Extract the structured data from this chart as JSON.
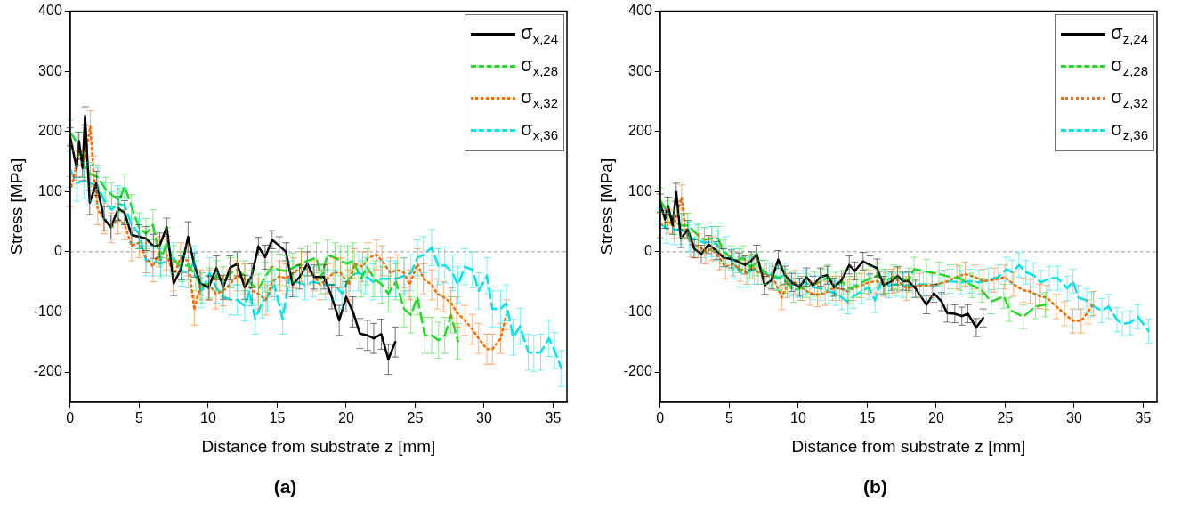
{
  "chart_data": [
    {
      "type": "line",
      "title": "(a)",
      "xlabel": "Distance from substrate z [mm]",
      "ylabel": "Stress [MPa]",
      "xlim": [
        0,
        36
      ],
      "xticks": [
        0,
        5,
        10,
        15,
        20,
        25,
        30,
        35
      ],
      "ylim": [
        -250,
        400
      ],
      "yticks": [
        -200,
        -100,
        0,
        100,
        200,
        300,
        400
      ],
      "grid": false,
      "legend": "top right",
      "marker": "none",
      "ref_lines": [
        {
          "axis": "y",
          "value": 0,
          "color": "#999999",
          "line_style": "dashed"
        }
      ],
      "series": [
        {
          "name": "σ$_{x,24}$",
          "color": "#000000",
          "line_style": "solid",
          "x": [
            0,
            0.47,
            0.64,
            0.9,
            1.08,
            1.42,
            1.9,
            2.46,
            2.95,
            3.5,
            3.94,
            4.45,
            5.0,
            5.5,
            6.05,
            6.5,
            7.0,
            7.5,
            8.06,
            8.55,
            9.0,
            9.43,
            10.03,
            10.6,
            11.1,
            11.58,
            12.1,
            12.65,
            13.16,
            13.64,
            14.13,
            14.64,
            15.15,
            15.64,
            16.12,
            16.63,
            17.19,
            17.67,
            18.4,
            18.96,
            19.5,
            20.0,
            20.5,
            21.0,
            21.55,
            22.0,
            22.55,
            23.06,
            23.56
          ],
          "values": [
            191,
            139,
            184,
            139,
            226,
            82,
            114,
            55,
            41,
            72,
            65,
            28,
            25,
            22,
            9,
            11,
            41,
            -53,
            -27,
            25,
            -22,
            -52,
            -60,
            -27,
            -59,
            -27,
            -20,
            -59,
            -40,
            9,
            -9,
            20,
            10,
            0,
            -55,
            -42,
            -20,
            -42,
            -42,
            -75,
            -114,
            -75,
            -100,
            -136,
            -139,
            -144,
            -137,
            -179,
            -150
          ],
          "errors": [
            15,
            15,
            15,
            15,
            15,
            20,
            20,
            20,
            20,
            20,
            20,
            20,
            20,
            20,
            20,
            20,
            15,
            20,
            20,
            25,
            20,
            20,
            20,
            20,
            20,
            20,
            20,
            20,
            20,
            15,
            20,
            15,
            15,
            15,
            20,
            20,
            20,
            20,
            20,
            20,
            25,
            25,
            25,
            25,
            25,
            25,
            25,
            25,
            25
          ]
        },
        {
          "name": "σ$_{x,28}$",
          "color": "#22dd22",
          "line_style": "dashed",
          "x": [
            0,
            0.58,
            1.0,
            1.46,
            2.0,
            2.57,
            3.0,
            3.57,
            3.94,
            4.45,
            5.0,
            5.5,
            6.0,
            6.55,
            7.0,
            7.5,
            8.1,
            8.55,
            9.1,
            9.55,
            10.1,
            10.6,
            11.1,
            11.65,
            12.1,
            12.65,
            13.2,
            13.64,
            14.13,
            14.64,
            15.15,
            15.64,
            16.12,
            16.75,
            17.2,
            17.85,
            18.2,
            18.63,
            19.2,
            19.6,
            20.1,
            20.5,
            21.1,
            21.5,
            22.06,
            22.6,
            23.06,
            23.6,
            24.2,
            24.7,
            25.16,
            25.7,
            26.2,
            26.7,
            27.15,
            27.6,
            28.1
          ],
          "values": [
            199,
            179,
            144,
            129,
            124,
            104,
            95,
            85,
            109,
            75,
            40,
            30,
            45,
            -15,
            15,
            -15,
            -25,
            -22,
            -40,
            -60,
            -52,
            -40,
            -50,
            -35,
            -30,
            -40,
            -55,
            -62,
            -42,
            -25,
            -30,
            -32,
            -27,
            -20,
            -15,
            -10,
            -45,
            -5,
            -10,
            -15,
            -20,
            -15,
            -45,
            -25,
            -45,
            -55,
            -70,
            -50,
            -95,
            -105,
            -75,
            -139,
            -139,
            -147,
            -139,
            -105,
            -149
          ],
          "errors": [
            20,
            20,
            20,
            20,
            20,
            20,
            20,
            20,
            20,
            20,
            25,
            25,
            25,
            25,
            25,
            25,
            25,
            25,
            25,
            25,
            25,
            25,
            25,
            25,
            25,
            25,
            25,
            25,
            25,
            25,
            25,
            25,
            25,
            25,
            25,
            25,
            25,
            25,
            25,
            25,
            30,
            30,
            30,
            30,
            30,
            30,
            30,
            30,
            30,
            30,
            30,
            30,
            30,
            30,
            30,
            30,
            30
          ]
        },
        {
          "name": "σ$_{x,32}$",
          "color": "#ff6a00",
          "line_style": "dotted",
          "x": [
            0,
            0.47,
            1.0,
            1.46,
            1.68,
            2.0,
            2.46,
            3.0,
            3.46,
            3.96,
            4.45,
            5.0,
            5.5,
            6.0,
            6.45,
            7.0,
            7.5,
            8.0,
            8.55,
            9.0,
            9.43,
            10.1,
            10.54,
            11.1,
            11.54,
            12.1,
            12.65,
            13.2,
            13.64,
            14.2,
            14.64,
            15.2,
            15.64,
            16.2,
            16.75,
            17.2,
            17.7,
            18.1,
            18.63,
            19.1,
            19.6,
            20.2,
            20.6,
            21.2,
            21.6,
            22.2,
            22.6,
            23.2,
            23.7,
            24.2,
            24.6,
            25.16,
            25.6,
            26.2,
            26.6,
            27.05,
            27.6,
            28.0,
            28.6,
            29.15,
            29.6,
            30.2,
            30.6,
            31.2,
            31.6
          ],
          "values": [
            100,
            144,
            144,
            209,
            134,
            70,
            55,
            40,
            55,
            45,
            10,
            15,
            -10,
            -25,
            0,
            -5,
            -40,
            -10,
            -15,
            -97,
            -55,
            -55,
            -70,
            -65,
            -55,
            -40,
            -45,
            -65,
            -70,
            -80,
            -50,
            -40,
            -45,
            -35,
            -25,
            -30,
            -40,
            -55,
            -45,
            -35,
            -35,
            -55,
            -20,
            -25,
            -10,
            -5,
            -15,
            -35,
            -30,
            -35,
            -55,
            -20,
            -45,
            -55,
            -70,
            -75,
            -85,
            -100,
            -114,
            -129,
            -144,
            -162,
            -162,
            -144,
            -105
          ],
          "errors": [
            25,
            25,
            25,
            25,
            25,
            25,
            25,
            25,
            25,
            25,
            25,
            25,
            25,
            25,
            25,
            25,
            25,
            25,
            25,
            25,
            25,
            25,
            25,
            25,
            25,
            25,
            25,
            25,
            25,
            25,
            25,
            25,
            25,
            25,
            25,
            25,
            25,
            25,
            25,
            25,
            25,
            25,
            25,
            25,
            25,
            25,
            25,
            25,
            25,
            25,
            25,
            25,
            25,
            25,
            25,
            25,
            25,
            25,
            25,
            25,
            25,
            25,
            25,
            25,
            25
          ]
        },
        {
          "name": "σ$_{x,36}$",
          "color": "#00e5ee",
          "line_style": "dashed",
          "x": [
            0,
            0.47,
            1.0,
            1.46,
            2.0,
            2.46,
            3.0,
            3.46,
            3.96,
            4.45,
            5.0,
            5.5,
            6.0,
            6.55,
            7.0,
            7.5,
            8.1,
            8.55,
            9.0,
            9.5,
            10.1,
            10.6,
            11.1,
            11.65,
            12.1,
            12.65,
            13.0,
            13.4,
            13.9,
            14.3,
            14.8,
            15.4,
            15.9,
            16.4,
            17.0,
            17.6,
            18.5,
            19.2,
            19.7,
            20.3,
            20.9,
            21.4,
            21.95,
            22.5,
            23.1,
            23.6,
            24.2,
            24.7,
            25.16,
            25.6,
            26.2,
            26.7,
            27.15,
            27.7,
            28.1,
            28.6,
            29.15,
            29.6,
            30.2,
            30.6,
            31.2,
            31.6,
            32.1,
            32.6,
            33.2,
            33.6,
            34.1,
            34.7,
            35.1,
            35.6
          ],
          "values": [
            137,
            114,
            119,
            114,
            109,
            85,
            70,
            80,
            77,
            45,
            30,
            -15,
            -15,
            -20,
            -15,
            -10,
            -32,
            -35,
            -15,
            -68,
            -35,
            -60,
            -75,
            -80,
            -80,
            -90,
            -65,
            -112,
            -85,
            -75,
            -55,
            -112,
            -40,
            -50,
            -55,
            -50,
            -55,
            -55,
            -70,
            -40,
            -35,
            -40,
            -50,
            -45,
            -45,
            -45,
            -40,
            -35,
            -10,
            -5,
            7,
            -25,
            -22,
            -35,
            -55,
            -25,
            -30,
            -65,
            -40,
            -95,
            -95,
            -85,
            -142,
            -124,
            -167,
            -169,
            -167,
            -144,
            -164,
            -194
          ],
          "errors": [
            30,
            30,
            30,
            30,
            30,
            30,
            30,
            30,
            30,
            30,
            25,
            25,
            25,
            25,
            25,
            25,
            25,
            25,
            25,
            25,
            25,
            25,
            25,
            25,
            25,
            25,
            25,
            25,
            25,
            25,
            25,
            25,
            25,
            25,
            25,
            25,
            25,
            25,
            25,
            25,
            30,
            30,
            30,
            30,
            30,
            30,
            30,
            30,
            30,
            30,
            30,
            30,
            30,
            30,
            30,
            30,
            30,
            30,
            30,
            30,
            30,
            30,
            30,
            30,
            30,
            30,
            30,
            30,
            30,
            30
          ]
        }
      ]
    },
    {
      "type": "line",
      "title": "(b)",
      "xlabel": "Distance from substrate z [mm]",
      "ylabel": "Stress [MPa]",
      "xlim": [
        0,
        36
      ],
      "xticks": [
        0,
        5,
        10,
        15,
        20,
        25,
        30,
        35
      ],
      "ylim": [
        -250,
        400
      ],
      "yticks": [
        -200,
        -100,
        0,
        100,
        200,
        300,
        400
      ],
      "grid": false,
      "legend": "top right",
      "marker": "none",
      "ref_lines": [
        {
          "axis": "y",
          "value": 0,
          "color": "#999999",
          "line_style": "dashed"
        }
      ],
      "series": [
        {
          "name": "σ$_{z,24}$",
          "color": "#000000",
          "line_style": "solid",
          "x": [
            0,
            0.35,
            0.57,
            0.9,
            1.16,
            1.5,
            2.0,
            2.47,
            2.98,
            3.5,
            4.07,
            4.6,
            5.16,
            5.7,
            6.15,
            6.6,
            7.0,
            7.57,
            8.07,
            8.55,
            9.04,
            9.54,
            10.1,
            10.6,
            11.07,
            11.6,
            12.1,
            12.6,
            13.15,
            13.7,
            14.1,
            14.7,
            15.2,
            15.7,
            16.2,
            16.76,
            17.2,
            17.6,
            18.0,
            18.5,
            19.3,
            19.83,
            20.4,
            20.8,
            21.35,
            21.86,
            22.3,
            22.9,
            23.4
          ],
          "values": [
            81,
            54,
            76,
            44,
            99,
            22,
            37,
            5,
            -4,
            12,
            2,
            -10,
            -12,
            -17,
            -22,
            -15,
            -4,
            -56,
            -47,
            -13,
            -39,
            -51,
            -59,
            -42,
            -56,
            -42,
            -39,
            -59,
            -47,
            -22,
            -32,
            -16,
            -22,
            -27,
            -56,
            -49,
            -40,
            -49,
            -49,
            -61,
            -88,
            -69,
            -83,
            -102,
            -103,
            -107,
            -103,
            -126,
            -110
          ],
          "errors": [
            15,
            15,
            15,
            15,
            15,
            15,
            15,
            15,
            15,
            15,
            15,
            15,
            15,
            15,
            15,
            15,
            15,
            15,
            15,
            15,
            15,
            15,
            15,
            15,
            15,
            15,
            15,
            15,
            15,
            15,
            15,
            15,
            15,
            15,
            15,
            15,
            15,
            15,
            15,
            15,
            15,
            15,
            15,
            15,
            15,
            15,
            15,
            15,
            15
          ]
        },
        {
          "name": "σ$_{z,28}$",
          "color": "#22dd22",
          "line_style": "dashed",
          "x": [
            0,
            0.57,
            1.0,
            1.55,
            2.0,
            2.76,
            3.2,
            3.74,
            4.2,
            4.6,
            5.16,
            5.7,
            6.0,
            6.5,
            7.0,
            7.57,
            8.1,
            8.67,
            9.1,
            9.65,
            10.15,
            10.6,
            11.2,
            11.7,
            12.17,
            12.7,
            13.26,
            13.7,
            14.25,
            14.8,
            15.23,
            15.8,
            16.3,
            16.9,
            17.3,
            18.0,
            18.4,
            19.3,
            20.2,
            21.0,
            21.7,
            22.6,
            23.3,
            23.98,
            24.9,
            25.3,
            26.3,
            27.2,
            27.9
          ],
          "values": [
            86,
            64,
            49,
            44,
            44,
            27,
            20,
            22,
            22,
            0,
            -10,
            -15,
            -10,
            -25,
            -20,
            -34,
            -39,
            -44,
            -49,
            -64,
            -61,
            -56,
            -54,
            -49,
            -42,
            -54,
            -51,
            -61,
            -56,
            -49,
            -44,
            -39,
            -49,
            -42,
            -44,
            -47,
            -29,
            -33,
            -37,
            -42,
            -44,
            -56,
            -64,
            -83,
            -74,
            -96,
            -108,
            -91,
            -88
          ],
          "errors": [
            20,
            20,
            20,
            20,
            20,
            20,
            20,
            20,
            20,
            20,
            20,
            20,
            20,
            20,
            20,
            20,
            20,
            20,
            20,
            20,
            20,
            20,
            20,
            20,
            20,
            20,
            20,
            20,
            20,
            20,
            20,
            20,
            20,
            20,
            20,
            20,
            20,
            20,
            20,
            20,
            20,
            20,
            20,
            20,
            20,
            20,
            20,
            20,
            20
          ]
        },
        {
          "name": "σ$_{z,32}$",
          "color": "#ff6a00",
          "line_style": "dotted",
          "x": [
            0,
            0.57,
            1.0,
            1.55,
            1.77,
            2.2,
            2.76,
            3.3,
            3.74,
            4.3,
            4.73,
            5.27,
            5.8,
            6.26,
            6.7,
            7.1,
            7.7,
            8.2,
            8.8,
            9.2,
            9.76,
            10.3,
            10.85,
            11.4,
            11.95,
            12.5,
            13.0,
            13.6,
            14.0,
            14.6,
            15.1,
            15.7,
            16.2,
            16.8,
            17.2,
            17.85,
            18.8,
            19.7,
            20.6,
            21.5,
            22.1,
            22.8,
            23.4,
            24.2,
            24.97,
            25.6,
            26.3,
            26.8,
            27.5,
            28.0,
            28.7,
            29.3,
            29.9,
            30.5,
            31.0,
            31.4
          ],
          "values": [
            44,
            51,
            42,
            91,
            44,
            12,
            10,
            0,
            5,
            -10,
            -25,
            -20,
            -29,
            -34,
            -25,
            -34,
            -39,
            -44,
            -76,
            -56,
            -51,
            -61,
            -69,
            -71,
            -69,
            -61,
            -61,
            -66,
            -61,
            -56,
            -51,
            -49,
            -54,
            -49,
            -47,
            -61,
            -56,
            -56,
            -51,
            -42,
            -37,
            -42,
            -49,
            -47,
            -42,
            -54,
            -64,
            -66,
            -74,
            -76,
            -91,
            -103,
            -115,
            -115,
            -100,
            -86
          ],
          "errors": [
            20,
            20,
            20,
            20,
            20,
            20,
            20,
            20,
            20,
            20,
            20,
            20,
            20,
            20,
            20,
            20,
            20,
            20,
            20,
            20,
            20,
            20,
            20,
            20,
            20,
            20,
            20,
            20,
            20,
            20,
            20,
            20,
            20,
            20,
            20,
            20,
            20,
            20,
            20,
            20,
            20,
            20,
            20,
            20,
            20,
            20,
            20,
            20,
            20,
            20,
            20,
            20,
            20,
            20,
            20,
            20
          ]
        },
        {
          "name": "σ$_{z,36}$",
          "color": "#00e5ee",
          "line_style": "dashed",
          "x": [
            0,
            0.46,
            1.0,
            1.55,
            2.1,
            2.65,
            3.2,
            3.74,
            4.2,
            4.73,
            5.35,
            5.8,
            6.35,
            6.8,
            7.35,
            7.9,
            8.45,
            9.0,
            9.43,
            10.0,
            10.5,
            11.07,
            11.6,
            12.2,
            12.7,
            13.15,
            13.6,
            14.0,
            14.6,
            15.1,
            15.56,
            16.0,
            16.55,
            17.1,
            17.6,
            18.3,
            19.06,
            19.7,
            20.4,
            21.0,
            21.8,
            22.45,
            23.1,
            23.8,
            24.5,
            25.1,
            25.5,
            26.0,
            26.5,
            27.05,
            27.6,
            28.2,
            28.8,
            29.5,
            29.9,
            30.3,
            30.9,
            31.25,
            32.0,
            32.5,
            33.1,
            33.5,
            34.06,
            34.6,
            35.4
          ],
          "values": [
            47,
            39,
            37,
            37,
            25,
            20,
            15,
            17,
            10,
            0,
            -20,
            -34,
            -34,
            -29,
            -34,
            -39,
            -44,
            -39,
            -54,
            -56,
            -51,
            -59,
            -61,
            -66,
            -69,
            -76,
            -83,
            -74,
            -66,
            -59,
            -81,
            -51,
            -56,
            -54,
            -56,
            -56,
            -54,
            -59,
            -51,
            -49,
            -51,
            -49,
            -51,
            -47,
            -42,
            -29,
            -34,
            -22,
            -34,
            -39,
            -51,
            -44,
            -44,
            -61,
            -49,
            -76,
            -81,
            -88,
            -98,
            -91,
            -113,
            -120,
            -118,
            -108,
            -132
          ],
          "errors": [
            25,
            25,
            25,
            25,
            25,
            25,
            25,
            25,
            25,
            25,
            25,
            25,
            25,
            25,
            20,
            20,
            20,
            20,
            20,
            20,
            20,
            20,
            20,
            20,
            20,
            20,
            20,
            20,
            20,
            20,
            20,
            20,
            20,
            20,
            20,
            20,
            20,
            20,
            20,
            20,
            20,
            20,
            20,
            20,
            20,
            20,
            20,
            20,
            20,
            20,
            20,
            20,
            20,
            20,
            20,
            20,
            20,
            20,
            20,
            20,
            20,
            20,
            20,
            20,
            20
          ]
        }
      ]
    }
  ]
}
